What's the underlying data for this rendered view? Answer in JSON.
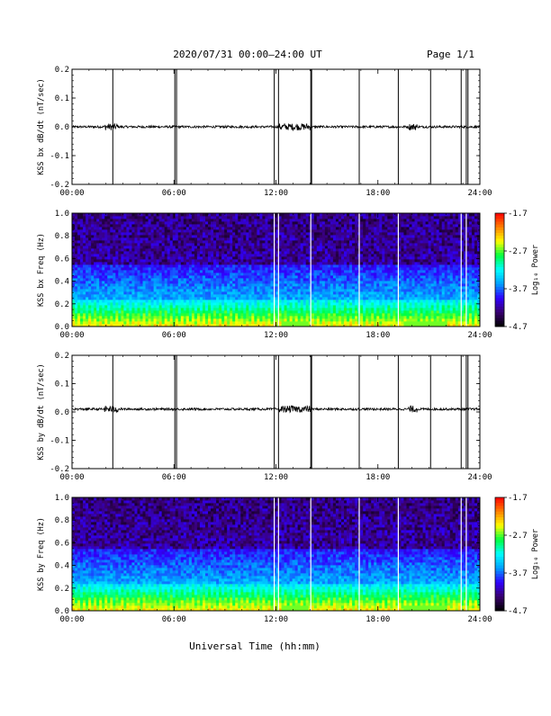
{
  "header": {
    "title": "2020/07/31  00:00–24:00 UT",
    "page": "Page 1/1"
  },
  "x_axis_label": "Universal Time (hh:mm)",
  "colorbar": {
    "label": "Log₁₀ Power",
    "ticks": [
      "-1.7",
      "-2.7",
      "-3.7",
      "-4.7"
    ],
    "min": -4.7,
    "max": -1.7,
    "colors": [
      "#000000",
      "#3a0070",
      "#3000ff",
      "#00a0ff",
      "#00ffff",
      "#00ff40",
      "#ffff00",
      "#ff8000",
      "#ff0000"
    ]
  },
  "chart_data": [
    {
      "type": "line",
      "ylabel": "KSS bx dB/dt (nT/sec)",
      "x_ticks": [
        "00:00",
        "06:00",
        "12:00",
        "18:00",
        "24:00"
      ],
      "y_ticks": [
        "0.2",
        "0.1",
        "0.0",
        "-0.1",
        "-0.2"
      ],
      "xlim": [
        0,
        24
      ],
      "ylim": [
        -0.2,
        0.2
      ],
      "baseline": 0.0,
      "spikes_hours": [
        2.4,
        6.05,
        6.15,
        11.9,
        12.15,
        14.05,
        14.1,
        16.9,
        19.2,
        21.1,
        22.9,
        23.2,
        23.3
      ],
      "noisy_intervals_hours": [
        [
          1.9,
          2.7
        ],
        [
          12.2,
          14.0
        ],
        [
          19.8,
          20.3
        ]
      ]
    },
    {
      "type": "heatmap",
      "ylabel": "KSS bx Freq (Hz)",
      "x_ticks": [
        "00:00",
        "06:00",
        "12:00",
        "18:00",
        "24:00"
      ],
      "y_ticks": [
        "1.0",
        "0.8",
        "0.6",
        "0.4",
        "0.2",
        "0.0"
      ],
      "xlim": [
        0,
        24
      ],
      "ylim": [
        0.0,
        1.0
      ],
      "gaps_hours": [
        11.9,
        12.15,
        14.05,
        16.9,
        19.2,
        22.9,
        23.2
      ]
    },
    {
      "type": "line",
      "ylabel": "KSS by dB/dt (nT/sec)",
      "x_ticks": [
        "00:00",
        "06:00",
        "12:00",
        "18:00",
        "24:00"
      ],
      "y_ticks": [
        "0.2",
        "0.1",
        "0.0",
        "-0.1",
        "-0.2"
      ],
      "xlim": [
        0,
        24
      ],
      "ylim": [
        -0.2,
        0.2
      ],
      "baseline": 0.01,
      "spikes_hours": [
        2.4,
        6.05,
        6.15,
        11.9,
        12.15,
        14.05,
        14.1,
        16.9,
        19.2,
        21.1,
        22.9,
        23.2,
        23.3
      ],
      "noisy_intervals_hours": [
        [
          1.9,
          2.7
        ],
        [
          12.2,
          14.0
        ],
        [
          19.8,
          20.3
        ]
      ]
    },
    {
      "type": "heatmap",
      "ylabel": "KSS by Freq (Hz)",
      "x_ticks": [
        "00:00",
        "06:00",
        "12:00",
        "18:00",
        "24:00"
      ],
      "y_ticks": [
        "1.0",
        "0.8",
        "0.6",
        "0.4",
        "0.2",
        "0.0"
      ],
      "xlim": [
        0,
        24
      ],
      "ylim": [
        0.0,
        1.0
      ],
      "gaps_hours": [
        11.9,
        12.15,
        14.05,
        16.9,
        19.2,
        22.9,
        23.2
      ]
    }
  ]
}
